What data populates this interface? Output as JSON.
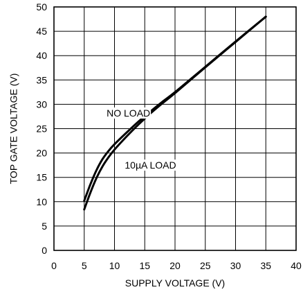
{
  "chart_data": {
    "type": "line",
    "title": "",
    "xlabel": "SUPPLY VOLTAGE (V)",
    "ylabel": "TOP GATE VOLTAGE (V)",
    "xlim": [
      0,
      40
    ],
    "ylim": [
      0,
      50
    ],
    "xticks": [
      0,
      5,
      10,
      15,
      20,
      25,
      30,
      35,
      40
    ],
    "yticks": [
      0,
      5,
      10,
      15,
      20,
      25,
      30,
      35,
      40,
      45,
      50
    ],
    "grid": true,
    "legend": "none",
    "series": [
      {
        "name": "NO LOAD",
        "x": [
          5,
          6,
          7,
          8,
          9,
          10,
          12,
          14,
          16,
          18,
          20,
          25,
          30,
          35
        ],
        "y": [
          10.2,
          13.5,
          16.4,
          18.7,
          20.4,
          21.8,
          24.2,
          26.5,
          28.6,
          30.6,
          32.5,
          37.7,
          42.9,
          48.0
        ]
      },
      {
        "name": "10µA LOAD",
        "x": [
          5,
          6,
          7,
          8,
          9,
          10,
          12,
          14,
          16,
          18,
          20,
          25,
          30,
          35
        ],
        "y": [
          8.4,
          11.8,
          14.8,
          17.2,
          19.1,
          20.7,
          23.4,
          25.9,
          28.2,
          30.3,
          32.3,
          37.6,
          42.8,
          48.0
        ]
      }
    ],
    "annotations": [
      {
        "text": "NO LOAD",
        "x": 8.7,
        "y": 27.5
      },
      {
        "text": "10µA LOAD",
        "x": 11.7,
        "y": 16.8
      }
    ]
  }
}
